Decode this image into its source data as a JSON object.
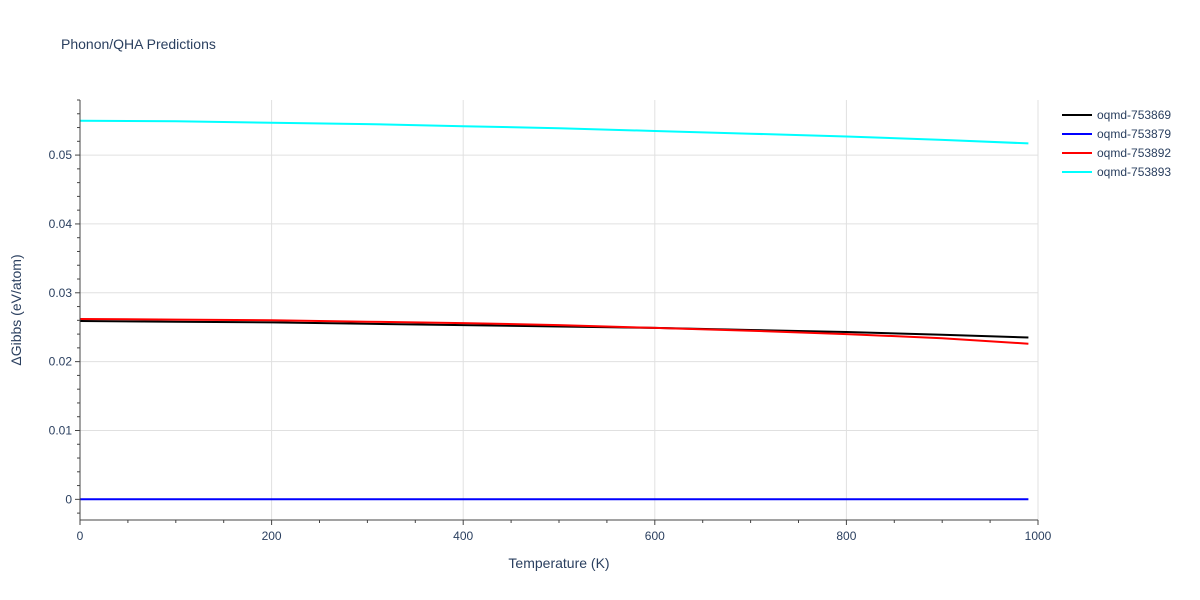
{
  "chart_data": {
    "type": "line",
    "title": "Phonon/QHA Predictions",
    "xlabel": "Temperature (K)",
    "ylabel": "ΔGibbs (eV/atom)",
    "xlim": [
      0,
      1000
    ],
    "ylim": [
      -0.003,
      0.058
    ],
    "x_ticks": [
      0,
      200,
      400,
      600,
      800,
      1000
    ],
    "y_ticks": [
      0,
      0.01,
      0.02,
      0.03,
      0.04,
      0.05
    ],
    "x_tick_labels": [
      "0",
      "200",
      "400",
      "600",
      "800",
      "1000"
    ],
    "y_tick_labels": [
      "0",
      "0.01",
      "0.02",
      "0.03",
      "0.04",
      "0.05"
    ],
    "grid": true,
    "legend_position": "top-right",
    "series": [
      {
        "name": "oqmd-753869",
        "color": "#000000",
        "x": [
          0,
          100,
          200,
          300,
          400,
          500,
          600,
          700,
          800,
          900,
          990
        ],
        "y": [
          0.0259,
          0.0258,
          0.0257,
          0.0255,
          0.0253,
          0.0251,
          0.0249,
          0.0246,
          0.0243,
          0.0239,
          0.0235
        ]
      },
      {
        "name": "oqmd-753879",
        "color": "#0000ff",
        "x": [
          0,
          100,
          200,
          300,
          400,
          500,
          600,
          700,
          800,
          900,
          990
        ],
        "y": [
          0,
          0,
          0,
          0,
          0,
          0,
          0,
          0,
          0,
          0,
          0
        ]
      },
      {
        "name": "oqmd-753892",
        "color": "#ff0000",
        "x": [
          0,
          100,
          200,
          300,
          400,
          500,
          600,
          700,
          800,
          900,
          990
        ],
        "y": [
          0.0262,
          0.0261,
          0.026,
          0.0258,
          0.0256,
          0.0253,
          0.0249,
          0.0245,
          0.024,
          0.0234,
          0.0226
        ]
      },
      {
        "name": "oqmd-753893",
        "color": "#00ffff",
        "x": [
          0,
          100,
          200,
          300,
          400,
          500,
          600,
          700,
          800,
          900,
          990
        ],
        "y": [
          0.055,
          0.0549,
          0.0547,
          0.0545,
          0.0542,
          0.0539,
          0.0535,
          0.0531,
          0.0527,
          0.0522,
          0.0517
        ]
      }
    ]
  }
}
